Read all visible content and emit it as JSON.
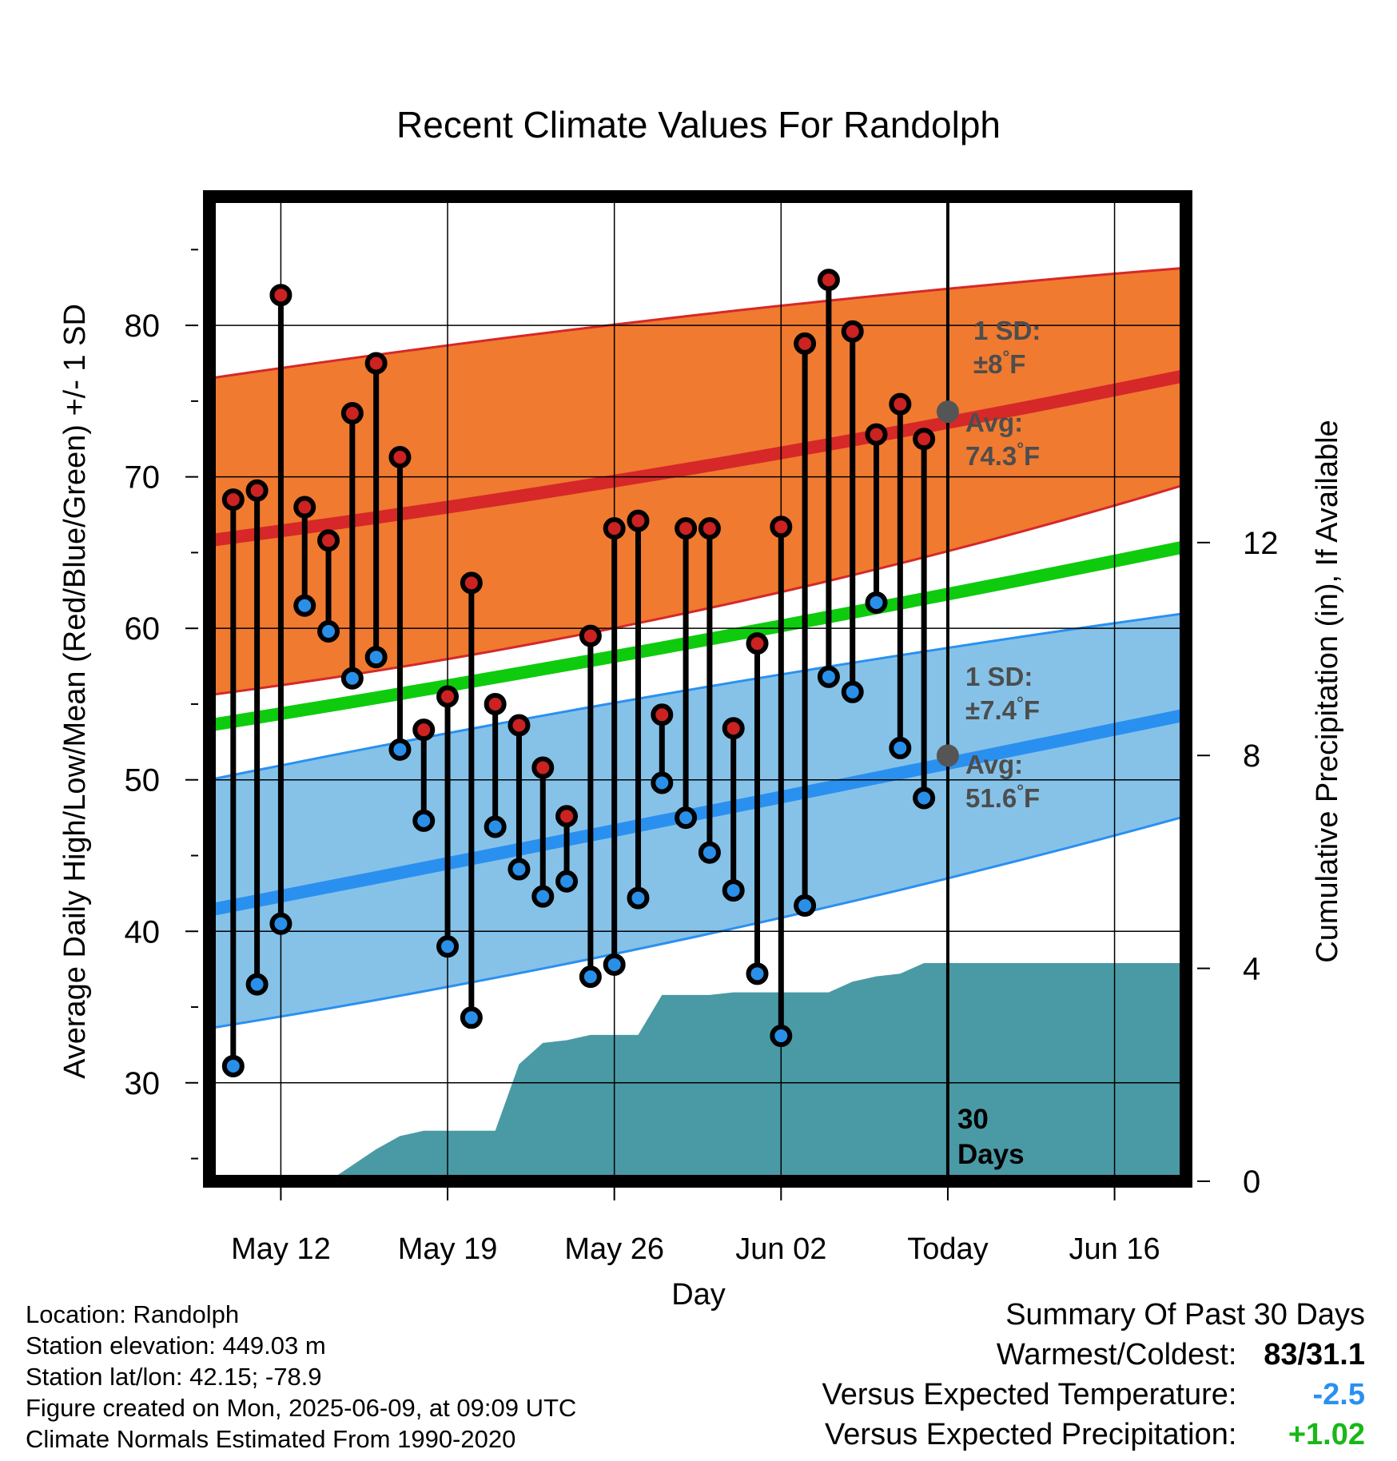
{
  "chart_data": {
    "type": "line",
    "title": "Recent Climate Values For Randolph",
    "xlabel": "Day",
    "ylabel_left": "Average Daily High/Low/Mean (Red/Blue/Green) +/- 1 SD",
    "ylabel_right": "Cumulative Precipitation (in), If Available",
    "ylim_left": [
      23.5,
      88.5
    ],
    "ylim_right": [
      0,
      18.5
    ],
    "x_range": [
      "2025-05-09",
      "2025-06-19"
    ],
    "x_ticks": [
      {
        "date": "2025-05-12",
        "label": "May 12"
      },
      {
        "date": "2025-05-19",
        "label": "May 19"
      },
      {
        "date": "2025-05-26",
        "label": "May 26"
      },
      {
        "date": "2025-06-02",
        "label": "Jun 02"
      },
      {
        "date": "2025-06-09",
        "label": "Today"
      },
      {
        "date": "2025-06-16",
        "label": "Jun 16"
      }
    ],
    "y_ticks_left": [
      30,
      40,
      50,
      60,
      70,
      80
    ],
    "y_ticks_right": [
      0,
      4,
      8,
      12
    ],
    "today": "2025-06-09",
    "today_label": [
      "30",
      "Days"
    ],
    "daily_dates": [
      "2025-05-10",
      "2025-05-11",
      "2025-05-12",
      "2025-05-13",
      "2025-05-14",
      "2025-05-15",
      "2025-05-16",
      "2025-05-17",
      "2025-05-18",
      "2025-05-19",
      "2025-05-20",
      "2025-05-21",
      "2025-05-22",
      "2025-05-23",
      "2025-05-24",
      "2025-05-25",
      "2025-05-26",
      "2025-05-27",
      "2025-05-28",
      "2025-05-29",
      "2025-05-30",
      "2025-05-31",
      "2025-06-01",
      "2025-06-02",
      "2025-06-03",
      "2025-06-04",
      "2025-06-05",
      "2025-06-06",
      "2025-06-07",
      "2025-06-08"
    ],
    "highs": [
      68.5,
      69.1,
      82.0,
      68.0,
      65.8,
      74.2,
      77.5,
      71.3,
      53.3,
      55.5,
      63.0,
      55.0,
      53.6,
      50.8,
      47.6,
      59.5,
      66.6,
      67.1,
      54.3,
      66.6,
      66.6,
      53.4,
      59.0,
      66.7,
      78.8,
      83.0,
      79.6,
      72.8,
      74.8,
      72.5
    ],
    "lows": [
      31.1,
      36.5,
      40.5,
      61.5,
      59.8,
      56.7,
      58.1,
      52.0,
      47.3,
      39.0,
      34.3,
      46.9,
      44.1,
      42.3,
      43.3,
      37.0,
      37.8,
      42.2,
      49.8,
      47.5,
      45.2,
      42.7,
      37.2,
      33.1,
      41.7,
      56.8,
      55.8,
      61.7,
      52.1,
      48.8
    ],
    "normal_dates": [
      "2025-05-09",
      "2025-05-29",
      "2025-06-19"
    ],
    "normal_high": [
      65.8,
      70.5,
      76.7
    ],
    "normal_high_sd_upper": [
      76.5,
      80.6,
      83.8
    ],
    "normal_high_sd_lower": [
      55.6,
      61.0,
      69.5
    ],
    "normal_low": [
      41.4,
      47.6,
      54.3
    ],
    "normal_low_sd_upper": [
      50.0,
      55.9,
      61.0
    ],
    "normal_low_sd_lower": [
      33.6,
      39.5,
      47.6
    ],
    "normal_mean": [
      53.6,
      59.0,
      65.4
    ],
    "precip_dates": [
      "2025-05-09",
      "2025-05-12",
      "2025-05-13",
      "2025-05-14",
      "2025-05-15",
      "2025-05-16",
      "2025-05-17",
      "2025-05-18",
      "2025-05-19",
      "2025-05-20",
      "2025-05-21",
      "2025-05-22",
      "2025-05-23",
      "2025-05-24",
      "2025-05-25",
      "2025-05-26",
      "2025-05-27",
      "2025-05-28",
      "2025-05-29",
      "2025-05-30",
      "2025-05-31",
      "2025-06-01",
      "2025-06-02",
      "2025-06-03",
      "2025-06-04",
      "2025-06-05",
      "2025-06-06",
      "2025-06-07",
      "2025-06-08",
      "2025-06-09",
      "2025-06-19"
    ],
    "precip_cumulative": [
      0,
      0,
      0,
      0,
      0.3,
      0.6,
      0.85,
      0.95,
      0.95,
      0.95,
      0.95,
      2.2,
      2.6,
      2.65,
      2.75,
      2.75,
      2.75,
      3.5,
      3.5,
      3.5,
      3.55,
      3.55,
      3.55,
      3.55,
      3.55,
      3.75,
      3.85,
      3.9,
      4.1,
      4.1,
      4.1
    ],
    "annotations": {
      "high_sd": [
        "1 SD:",
        "±8°F"
      ],
      "high_avg": [
        "Avg:",
        "74.3°F"
      ],
      "high_avg_value": 74.3,
      "low_sd": [
        "1 SD:",
        "±7.4°F"
      ],
      "low_avg": [
        "Avg:",
        "51.6°F"
      ],
      "low_avg_value": 51.6
    },
    "colors": {
      "high_band": "#f07a30",
      "high_line": "#d62828",
      "low_band": "#86c2e8",
      "low_line": "#2a90f0",
      "mean_line": "#0ecb0e",
      "precip": "#4a9aa5",
      "high_marker": "#cc2222",
      "low_marker": "#2a8fe8",
      "annotation": "#4d4d4d",
      "avg_marker": "#555555"
    }
  },
  "info": {
    "location": "Location: Randolph",
    "elevation": "Station elevation: 449.03 m",
    "latlon": "Station lat/lon: 42.15; -78.9",
    "created": "Figure created on Mon, 2025-06-09, at 09:09 UTC",
    "normals": "Climate Normals Estimated From 1990-2020"
  },
  "summary": {
    "heading": "Summary Of Past 30 Days",
    "warmest_coldest_label": "Warmest/Coldest:",
    "warmest_coldest_value": "83/31.1",
    "temp_label": "Versus Expected Temperature:",
    "temp_value": "-2.5",
    "temp_color": "#2a90f0",
    "precip_label": "Versus Expected Precipitation:",
    "precip_value": "+1.02",
    "precip_color": "#18b818"
  }
}
